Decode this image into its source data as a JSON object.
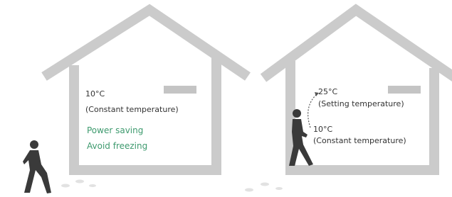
{
  "left_house": {
    "temperature": "10°C",
    "mode": "(Constant temperature)",
    "benefits": [
      "Power saving",
      "Avoid freezing"
    ]
  },
  "right_house": {
    "setting_temperature": "25°C",
    "setting_mode": "(Setting temperature)",
    "temperature": "10°C",
    "mode": "(Constant temperature)"
  }
}
